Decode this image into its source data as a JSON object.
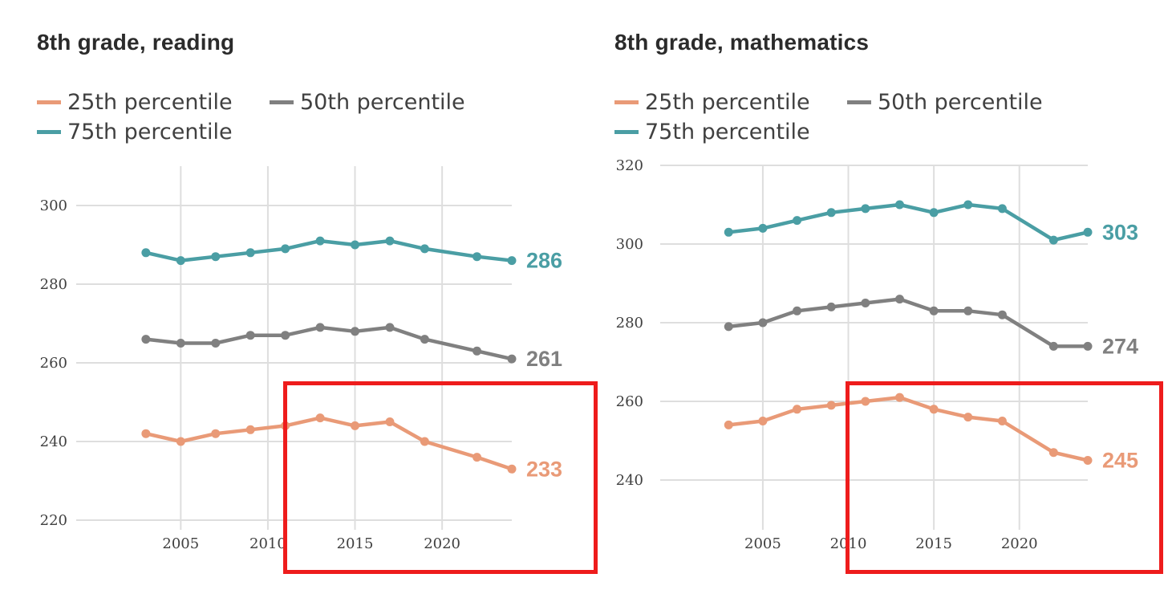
{
  "chart_data": [
    {
      "type": "line",
      "title": "8th grade, reading",
      "x": [
        2003,
        2005,
        2007,
        2009,
        2011,
        2013,
        2015,
        2017,
        2019,
        2022,
        2024
      ],
      "xticks": [
        2005,
        2010,
        2015,
        2020
      ],
      "yticks": [
        220,
        240,
        260,
        280,
        300
      ],
      "xlim": [
        1999,
        2024
      ],
      "ylim": [
        220,
        310
      ],
      "grid": true,
      "legend_position": "top",
      "series": [
        {
          "name": "25th percentile",
          "color": "#e99a77",
          "values": [
            242,
            240,
            242,
            243,
            244,
            246,
            244,
            245,
            240,
            236,
            233
          ],
          "end_label": "233"
        },
        {
          "name": "50th percentile",
          "color": "#808080",
          "values": [
            266,
            265,
            265,
            267,
            267,
            269,
            268,
            269,
            266,
            263,
            261
          ],
          "end_label": "261"
        },
        {
          "name": "75th percentile",
          "color": "#4a9ea4",
          "values": [
            288,
            286,
            287,
            288,
            289,
            291,
            290,
            291,
            289,
            287,
            286
          ],
          "end_label": "286"
        }
      ],
      "highlight": {
        "color": "#ee1c1c",
        "from_x": 2012.5
      }
    },
    {
      "type": "line",
      "title": "8th grade, mathematics",
      "x": [
        2003,
        2005,
        2007,
        2009,
        2011,
        2013,
        2015,
        2017,
        2019,
        2022,
        2024
      ],
      "xticks": [
        2005,
        2010,
        2015,
        2020
      ],
      "yticks": [
        240,
        260,
        280,
        300,
        320
      ],
      "xlim": [
        1999,
        2024
      ],
      "ylim": [
        230,
        320
      ],
      "grid": true,
      "legend_position": "top",
      "series": [
        {
          "name": "25th percentile",
          "color": "#e99a77",
          "values": [
            254,
            255,
            258,
            259,
            260,
            261,
            258,
            256,
            255,
            247,
            245
          ],
          "end_label": "245"
        },
        {
          "name": "50th percentile",
          "color": "#808080",
          "values": [
            279,
            280,
            283,
            284,
            285,
            286,
            283,
            283,
            282,
            274,
            274
          ],
          "end_label": "274"
        },
        {
          "name": "75th percentile",
          "color": "#4a9ea4",
          "values": [
            303,
            304,
            306,
            308,
            309,
            310,
            308,
            310,
            309,
            301,
            303
          ],
          "end_label": "303"
        }
      ],
      "highlight": {
        "color": "#ee1c1c",
        "from_x": 2012.5
      }
    }
  ]
}
